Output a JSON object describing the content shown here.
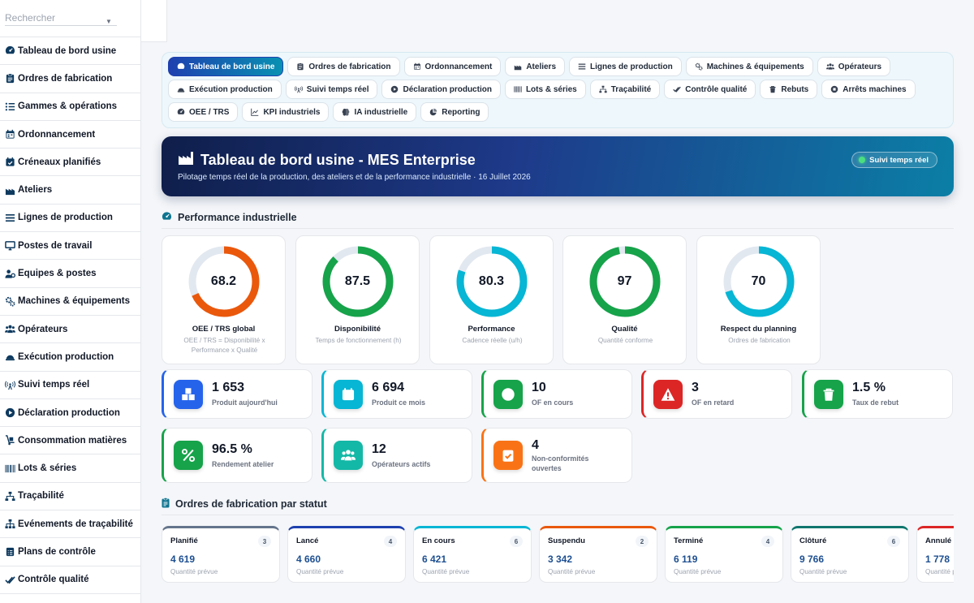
{
  "search": {
    "placeholder": "Rechercher"
  },
  "sidebar": {
    "items": [
      {
        "label": "Tableau de bord usine",
        "icon": "gauge-icon"
      },
      {
        "label": "Ordres de fabrication",
        "icon": "clipboard-icon"
      },
      {
        "label": "Gammes & opérations",
        "icon": "list-icon"
      },
      {
        "label": "Ordonnancement",
        "icon": "calendar-icon"
      },
      {
        "label": "Créneaux planifiés",
        "icon": "calendar-check-icon"
      },
      {
        "label": "Ateliers",
        "icon": "industry-icon"
      },
      {
        "label": "Lignes de production",
        "icon": "lines-icon"
      },
      {
        "label": "Postes de travail",
        "icon": "monitor-icon"
      },
      {
        "label": "Équipes & postes",
        "icon": "users-cog-icon"
      },
      {
        "label": "Machines & équipements",
        "icon": "gears-icon"
      },
      {
        "label": "Opérateurs",
        "icon": "users-icon"
      },
      {
        "label": "Exécution production",
        "icon": "hard-hat-icon"
      },
      {
        "label": "Suivi temps réel",
        "icon": "broadcast-icon"
      },
      {
        "label": "Déclaration production",
        "icon": "play-circle-icon"
      },
      {
        "label": "Consommation matières",
        "icon": "dolly-icon"
      },
      {
        "label": "Lots & séries",
        "icon": "barcode-icon"
      },
      {
        "label": "Traçabilité",
        "icon": "sitemap-icon"
      },
      {
        "label": "Événements de traçabilité",
        "icon": "network-icon"
      },
      {
        "label": "Plans de contrôle",
        "icon": "clipboard-list-icon"
      },
      {
        "label": "Contrôle qualité",
        "icon": "check-double-icon"
      }
    ]
  },
  "tabs": [
    {
      "label": "Tableau de bord usine",
      "icon": "gauge-icon",
      "active": true
    },
    {
      "label": "Ordres de fabrication",
      "icon": "clipboard-icon"
    },
    {
      "label": "Ordonnancement",
      "icon": "calendar-icon"
    },
    {
      "label": "Ateliers",
      "icon": "industry-icon"
    },
    {
      "label": "Lignes de production",
      "icon": "lines-icon"
    },
    {
      "label": "Machines & équipements",
      "icon": "gears-icon"
    },
    {
      "label": "Opérateurs",
      "icon": "users-icon"
    },
    {
      "label": "Exécution production",
      "icon": "hard-hat-icon"
    },
    {
      "label": "Suivi temps réel",
      "icon": "broadcast-icon"
    },
    {
      "label": "Déclaration production",
      "icon": "play-circle-icon"
    },
    {
      "label": "Lots & séries",
      "icon": "barcode-icon"
    },
    {
      "label": "Traçabilité",
      "icon": "sitemap-icon"
    },
    {
      "label": "Contrôle qualité",
      "icon": "check-double-icon"
    },
    {
      "label": "Rebuts",
      "icon": "trash-icon"
    },
    {
      "label": "Arrêts machines",
      "icon": "stop-circle-icon"
    },
    {
      "label": "OEE / TRS",
      "icon": "gauge-icon"
    },
    {
      "label": "KPI industriels",
      "icon": "chart-line-icon"
    },
    {
      "label": "IA industrielle",
      "icon": "brain-icon"
    },
    {
      "label": "Reporting",
      "icon": "pie-chart-icon"
    }
  ],
  "hero": {
    "title": "Tableau de bord usine - MES Enterprise",
    "subtitle": "Pilotage temps réel de la production, des ateliers et de la performance industrielle · 16 Juillet 2026",
    "badge": "Suivi temps réel"
  },
  "performance": {
    "title": "Performance industrielle",
    "gauges": [
      {
        "value": "68.2",
        "pct": 68.2,
        "label": "OEE / TRS global",
        "desc": "OEE / TRS = Disponibilité x Performance x Qualité",
        "color": "#ea580c"
      },
      {
        "value": "87.5",
        "pct": 87.5,
        "label": "Disponibilité",
        "desc": "Temps de fonctionnement (h)",
        "color": "#16a34a"
      },
      {
        "value": "80.3",
        "pct": 80.3,
        "label": "Performance",
        "desc": "Cadence réelle (u/h)",
        "color": "#06b6d4"
      },
      {
        "value": "97",
        "pct": 97,
        "label": "Qualité",
        "desc": "Quantité conforme",
        "color": "#16a34a"
      },
      {
        "value": "70",
        "pct": 70,
        "label": "Respect du planning",
        "desc": "Ordres de fabrication",
        "color": "#06b6d4"
      }
    ]
  },
  "kpis": [
    {
      "value": "1 653",
      "label": "Produit aujourd'hui",
      "icon": "boxes-icon",
      "color": "#2563eb",
      "border": "#2563eb"
    },
    {
      "value": "6 694",
      "label": "Produit ce mois",
      "icon": "calendar-icon",
      "color": "#06b6d4",
      "border": "#06b6d4"
    },
    {
      "value": "10",
      "label": "OF en cours",
      "icon": "play-circle-icon",
      "color": "#16a34a",
      "border": "#16a34a"
    },
    {
      "value": "3",
      "label": "OF en retard",
      "icon": "warning-icon",
      "color": "#dc2626",
      "border": "#dc2626"
    },
    {
      "value": "1.5 %",
      "label": "Taux de rebut",
      "icon": "trash-icon",
      "color": "#16a34a",
      "border": "#16a34a"
    },
    {
      "value": "96.5 %",
      "label": "Rendement atelier",
      "icon": "percent-icon",
      "color": "#16a34a",
      "border": "#16a34a"
    },
    {
      "value": "12",
      "label": "Opérateurs actifs",
      "icon": "users-icon",
      "color": "#14b8a6",
      "border": "#14b8a6"
    },
    {
      "value": "4",
      "label": "Non-conformités ouvertes",
      "icon": "clipboard-check-icon",
      "color": "#f97316",
      "border": "#f97316"
    }
  ],
  "orders": {
    "title": "Ordres de fabrication par statut",
    "sub_label": "Quantité prévue",
    "statuses": [
      {
        "name": "Planifié",
        "count": "3",
        "qty": "4 619",
        "color": "#64748b"
      },
      {
        "name": "Lancé",
        "count": "4",
        "qty": "4 660",
        "color": "#1e40af"
      },
      {
        "name": "En cours",
        "count": "6",
        "qty": "6 421",
        "color": "#06b6d4"
      },
      {
        "name": "Suspendu",
        "count": "2",
        "qty": "3 342",
        "color": "#ea580c"
      },
      {
        "name": "Terminé",
        "count": "4",
        "qty": "6 119",
        "color": "#16a34a"
      },
      {
        "name": "Clôturé",
        "count": "6",
        "qty": "9 766",
        "color": "#0f766e"
      },
      {
        "name": "Annulé",
        "count": "",
        "qty": "1 778",
        "color": "#dc2626"
      }
    ]
  }
}
